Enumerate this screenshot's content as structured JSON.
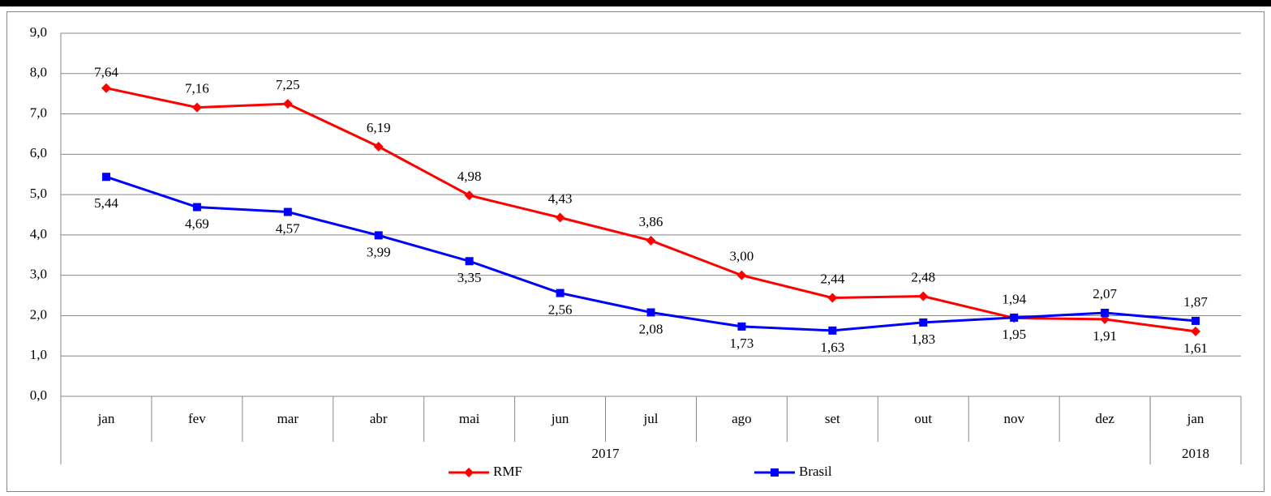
{
  "chart_data": {
    "type": "line",
    "categories": [
      "jan",
      "fev",
      "mar",
      "abr",
      "mai",
      "jun",
      "jul",
      "ago",
      "set",
      "out",
      "nov",
      "dez",
      "jan"
    ],
    "category_groups": [
      {
        "label": "2017",
        "count": 12
      },
      {
        "label": "2018",
        "count": 1
      }
    ],
    "series": [
      {
        "name": "RMF",
        "color": "#ff0000",
        "marker": "diamond",
        "values": [
          7.64,
          7.16,
          7.25,
          6.19,
          4.98,
          4.43,
          3.86,
          3.0,
          2.44,
          2.48,
          1.94,
          1.91,
          1.61
        ],
        "value_labels": [
          "7,64",
          "7,16",
          "7,25",
          "6,19",
          "4,98",
          "4,43",
          "3,86",
          "3,00",
          "2,44",
          "2,48",
          "1,94",
          "1,91",
          "1,61"
        ]
      },
      {
        "name": "Brasil",
        "color": "#0000ff",
        "marker": "square",
        "values": [
          5.44,
          4.69,
          4.57,
          3.99,
          3.35,
          2.56,
          2.08,
          1.73,
          1.63,
          1.83,
          1.95,
          2.07,
          1.87
        ],
        "value_labels": [
          "5,44",
          "4,69",
          "4,57",
          "3,99",
          "3,35",
          "2,56",
          "2,08",
          "1,73",
          "1,63",
          "1,83",
          "1,95",
          "2,07",
          "1,87"
        ]
      }
    ],
    "ylim": [
      0,
      9
    ],
    "yticks": [
      {
        "value": 0,
        "label": "0,0"
      },
      {
        "value": 1,
        "label": "1,0"
      },
      {
        "value": 2,
        "label": "2,0"
      },
      {
        "value": 3,
        "label": "3,0"
      },
      {
        "value": 4,
        "label": "4,0"
      },
      {
        "value": 5,
        "label": "5,0"
      },
      {
        "value": 6,
        "label": "6,0"
      },
      {
        "value": 7,
        "label": "7,0"
      },
      {
        "value": 8,
        "label": "8,0"
      },
      {
        "value": 9,
        "label": "9,0"
      }
    ],
    "grid": true,
    "legend": "bottom"
  }
}
